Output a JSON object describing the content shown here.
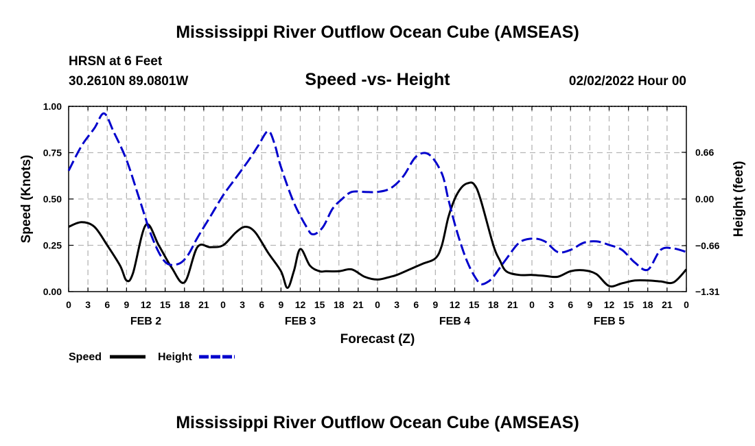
{
  "header": {
    "title": "Mississippi River Outflow Ocean Cube (AMSEAS)",
    "station": "HRSN at 6 Feet",
    "coords": "30.2610N  89.0801W",
    "subtitle": "Speed -vs- Height",
    "datetime": "02/02/2022 Hour 00"
  },
  "footer": {
    "title": "Mississippi River Outflow Ocean Cube (AMSEAS)"
  },
  "colors": {
    "speed": "#000000",
    "height": "#0000cc",
    "grid": "#b4b4b4"
  },
  "chart_data": {
    "type": "line",
    "title": "Speed -vs- Height",
    "xlabel": "Forecast (Z)",
    "ylabel": "Speed (Knots)",
    "y2label": "Height (feet)",
    "xlim": [
      0,
      96
    ],
    "ylim": [
      0,
      1
    ],
    "y2lim": [
      -1.31,
      1.31
    ],
    "x_tick_step_hours": 3,
    "x_tick_labels": [
      "0",
      "3",
      "6",
      "9",
      "12",
      "15",
      "18",
      "21",
      "0",
      "3",
      "6",
      "9",
      "12",
      "15",
      "18",
      "21",
      "0",
      "3",
      "6",
      "9",
      "12",
      "15",
      "18",
      "21",
      "0",
      "3",
      "6",
      "9",
      "12",
      "15",
      "18",
      "21",
      "0"
    ],
    "y_ticks": [
      0,
      0.25,
      0.5,
      0.75,
      1.0
    ],
    "y_tick_labels": [
      "0.00",
      "0.25",
      "0.50",
      "0.75",
      "1.00"
    ],
    "y2_ticks": [
      -1.31,
      -0.66,
      0.0,
      0.66
    ],
    "y2_tick_labels": [
      "−1.31",
      "−0.66",
      "0.00",
      "0.66"
    ],
    "date_labels": [
      {
        "label": "FEB 2",
        "hour": 12
      },
      {
        "label": "FEB 3",
        "hour": 36
      },
      {
        "label": "FEB 4",
        "hour": 60
      },
      {
        "label": "FEB 5",
        "hour": 84
      }
    ],
    "legend": [
      "Speed",
      "Height"
    ],
    "series": [
      {
        "name": "Speed",
        "axis": "left",
        "style": "solid",
        "x": [
          0,
          2,
          4,
          6,
          8,
          9,
          10,
          12,
          14,
          16,
          18,
          20,
          22,
          24,
          26,
          27.5,
          29,
          31,
          33,
          34,
          35,
          36,
          37.5,
          39,
          40,
          42,
          44,
          46,
          48,
          50,
          51,
          53,
          55,
          57,
          58,
          59,
          60,
          61,
          62,
          63,
          64,
          66,
          67,
          68,
          70,
          72,
          74,
          76,
          78,
          80,
          82,
          84,
          86,
          88,
          90,
          92,
          94,
          96
        ],
        "values": [
          0.35,
          0.375,
          0.35,
          0.25,
          0.14,
          0.06,
          0.1,
          0.36,
          0.25,
          0.13,
          0.05,
          0.24,
          0.24,
          0.25,
          0.32,
          0.35,
          0.32,
          0.21,
          0.11,
          0.02,
          0.11,
          0.23,
          0.14,
          0.11,
          0.11,
          0.11,
          0.12,
          0.08,
          0.065,
          0.08,
          0.09,
          0.12,
          0.15,
          0.18,
          0.25,
          0.4,
          0.5,
          0.56,
          0.585,
          0.58,
          0.5,
          0.25,
          0.17,
          0.11,
          0.09,
          0.09,
          0.085,
          0.08,
          0.11,
          0.115,
          0.095,
          0.03,
          0.045,
          0.06,
          0.06,
          0.055,
          0.05,
          0.12
        ]
      },
      {
        "name": "Height",
        "axis": "right",
        "style": "dashed",
        "x": [
          0,
          2,
          4,
          5.5,
          7,
          9,
          11,
          13,
          15,
          17,
          18.5,
          20,
          22,
          24,
          26,
          28,
          29.5,
          31,
          32,
          33,
          35,
          37,
          38,
          39.5,
          41,
          42.5,
          44,
          46,
          48,
          50,
          52,
          54,
          56,
          58,
          59,
          60,
          61,
          62,
          63,
          64,
          65,
          66,
          68,
          70,
          72,
          74,
          76,
          78,
          80,
          82,
          84,
          86,
          88,
          90,
          92,
          94,
          96
        ],
        "values": [
          0.4,
          0.75,
          1.0,
          1.21,
          0.95,
          0.55,
          0.0,
          -0.55,
          -0.89,
          -0.92,
          -0.8,
          -0.55,
          -0.25,
          0.05,
          0.3,
          0.55,
          0.76,
          0.96,
          0.78,
          0.45,
          -0.05,
          -0.4,
          -0.5,
          -0.4,
          -0.14,
          0.0,
          0.1,
          0.1,
          0.1,
          0.15,
          0.32,
          0.6,
          0.63,
          0.36,
          0.0,
          -0.35,
          -0.65,
          -0.9,
          -1.08,
          -1.2,
          -1.18,
          -1.1,
          -0.85,
          -0.62,
          -0.56,
          -0.6,
          -0.75,
          -0.72,
          -0.62,
          -0.6,
          -0.65,
          -0.72,
          -0.9,
          -1.0,
          -0.72,
          -0.7,
          -0.75
        ]
      }
    ]
  }
}
